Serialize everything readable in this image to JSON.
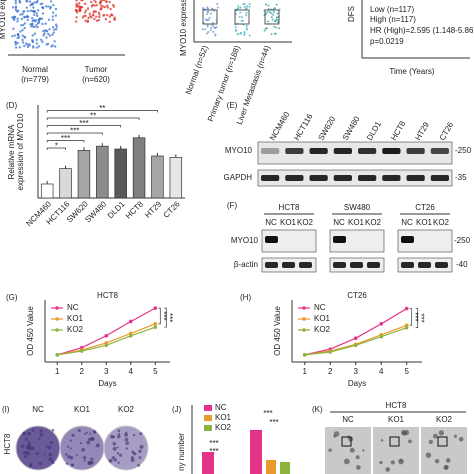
{
  "chart_data": [
    {
      "type": "bar",
      "panel_label": "(D)",
      "y_label_lines": [
        "Relative mRNA",
        "expression of MYO10"
      ],
      "categories": [
        "NCM460",
        "HCT116",
        "SW620",
        "SW480",
        "DLD1",
        "HCT8",
        "HT29",
        "CT26"
      ],
      "values": [
        1.0,
        2.1,
        3.4,
        3.7,
        3.5,
        4.3,
        3.0,
        2.9
      ],
      "colors": [
        "#ffffff",
        "#d9d9d9",
        "#a6a6a6",
        "#8c8c8c",
        "#595959",
        "#7f7f7f",
        "#a6a6a6",
        "#e6e6e6"
      ],
      "ylim": [
        0,
        5
      ],
      "significance": [
        "*",
        "***",
        "***",
        "***",
        "**",
        "**"
      ]
    },
    {
      "type": "line",
      "panel_label": "(G)",
      "title": "HCT8",
      "x": [
        1,
        2,
        3,
        4,
        5
      ],
      "xlim": [
        0.5,
        5.6
      ],
      "xticks": [
        1,
        2,
        3,
        4,
        5
      ],
      "x_label": "Days",
      "y_label": "OD 450 Value",
      "ylim": [
        0.15,
        1.45
      ],
      "series": [
        {
          "name": "NC",
          "color": "#e6338a",
          "values": [
            0.3,
            0.45,
            0.7,
            1.0,
            1.28
          ]
        },
        {
          "name": "KO1",
          "color": "#e89a2c",
          "values": [
            0.3,
            0.4,
            0.55,
            0.75,
            0.95
          ]
        },
        {
          "name": "KO2",
          "color": "#8cb43c",
          "values": [
            0.3,
            0.38,
            0.5,
            0.7,
            0.88
          ]
        }
      ],
      "significance": [
        "***",
        "***"
      ]
    },
    {
      "type": "line",
      "panel_label": "(H)",
      "title": "CT26",
      "x": [
        1,
        2,
        3,
        4,
        5
      ],
      "xlim": [
        0.5,
        5.6
      ],
      "xticks": [
        1,
        2,
        3,
        4,
        5
      ],
      "x_label": "Days",
      "y_label": "OD 450 Value",
      "ylim": [
        0.15,
        1.45
      ],
      "series": [
        {
          "name": "NC",
          "color": "#e6338a",
          "values": [
            0.3,
            0.42,
            0.65,
            0.95,
            1.27
          ]
        },
        {
          "name": "KO1",
          "color": "#e89a2c",
          "values": [
            0.3,
            0.38,
            0.52,
            0.72,
            0.92
          ]
        },
        {
          "name": "KO2",
          "color": "#8cb43c",
          "values": [
            0.3,
            0.36,
            0.5,
            0.68,
            0.87
          ]
        }
      ],
      "significance": [
        "***",
        "***"
      ]
    }
  ],
  "panels": {
    "A": {
      "y_label": "MYO10 exp",
      "groups": [
        {
          "name": "Normal",
          "n": "(n=779)"
        },
        {
          "name": "Tumor",
          "n": "(n=620)"
        }
      ]
    },
    "B": {
      "y_label": "MYO10 expression",
      "groups": [
        "Normal (n=52)",
        "Primary tumor (n=188)",
        "Liver Metastasis (n=44)"
      ]
    },
    "C": {
      "y_label": "DFS",
      "legend": [
        "Low (n=117)",
        "High (n=117)"
      ],
      "hr": "HR (High)=2.595 (1.148-5.867)",
      "p": "p=0.0219",
      "x_label": "Time (Years)"
    },
    "E": {
      "label": "(E)",
      "lanes": [
        "NCM460",
        "HCT116",
        "SW620",
        "SW480",
        "DLD1",
        "HCT8",
        "HT29",
        "CT26"
      ],
      "rows": [
        "MYO10",
        "GAPDH"
      ],
      "markers": [
        "-250",
        "-35"
      ]
    },
    "F": {
      "label": "(F)",
      "cell_lines": [
        "HCT8",
        "SW480",
        "CT26"
      ],
      "lanes": [
        "NC",
        "KO1",
        "KO2"
      ],
      "rows": [
        "MYO10",
        "β-actin"
      ],
      "markers": [
        "-250",
        "-40"
      ]
    },
    "I": {
      "label": "(I)",
      "columns": [
        "NC",
        "KO1",
        "KO2"
      ],
      "row": "HCT8"
    },
    "J": {
      "label": "(J)",
      "legend": [
        "NC",
        "KO1",
        "KO2"
      ],
      "y_label": "ny number",
      "significance": [
        "***",
        "***",
        "***",
        "***"
      ]
    },
    "K": {
      "label": "(K)",
      "title": "HCT8",
      "columns": [
        "NC",
        "KO1",
        "KO2"
      ]
    }
  }
}
